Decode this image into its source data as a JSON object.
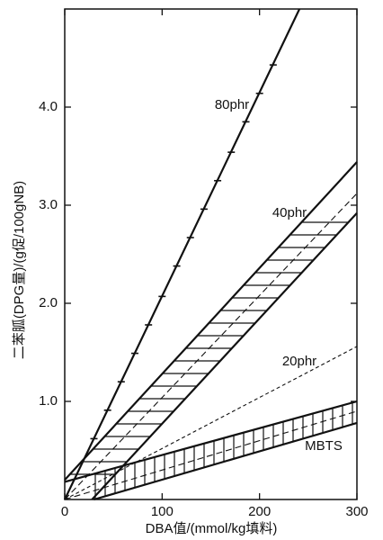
{
  "chart_data": {
    "type": "line",
    "x_label": "DBA值/(mmol/kg填料)",
    "y_label": "二苯胍(DPG量)/(g促/100gNB)",
    "xlim": [
      0,
      300
    ],
    "ylim": [
      0,
      5
    ],
    "xticks": [
      0,
      100,
      200,
      300
    ],
    "yticks": [
      {
        "value": 1,
        "label": "1.0"
      },
      {
        "value": 2,
        "label": "2.0"
      },
      {
        "value": 3,
        "label": "3.0"
      },
      {
        "value": 4,
        "label": "4.0"
      }
    ],
    "color": "#111111",
    "groups": [
      {
        "label": "80phr",
        "lines": [
          {
            "style": "solid",
            "x": [
              0,
              241
            ],
            "values": [
              0,
              5.0
            ]
          }
        ],
        "markers": {
          "x": [
            30,
            44,
            58,
            72,
            86,
            100,
            115,
            129,
            143,
            157,
            171,
            186,
            200,
            214
          ],
          "values": [
            0.62,
            0.91,
            1.2,
            1.49,
            1.78,
            2.07,
            2.38,
            2.67,
            2.96,
            3.25,
            3.54,
            3.85,
            4.14,
            4.43
          ]
        }
      },
      {
        "label": "40phr",
        "hatch": "horizontal",
        "lines": [
          {
            "style": "solid",
            "x": [
              0,
              300
            ],
            "values": [
              0.2,
              3.44
            ]
          },
          {
            "style": "solid",
            "x": [
              28,
              300
            ],
            "values": [
              0,
              2.92
            ]
          },
          {
            "style": "dashed",
            "x": [
              0,
              300
            ],
            "values": [
              0,
              3.12
            ]
          }
        ]
      },
      {
        "label": "20phr",
        "lines": [
          {
            "style": "dotted",
            "x": [
              0,
              300
            ],
            "values": [
              0,
              1.56
            ]
          }
        ]
      },
      {
        "label": "MBTS",
        "hatch": "vertical",
        "lines": [
          {
            "style": "solid",
            "x": [
              0,
              300
            ],
            "values": [
              0.18,
              1.0
            ]
          },
          {
            "style": "solid",
            "x": [
              30,
              300
            ],
            "values": [
              0,
              0.78
            ]
          },
          {
            "style": "dashed",
            "x": [
              0,
              300
            ],
            "values": [
              0,
              0.9
            ]
          }
        ]
      }
    ]
  }
}
